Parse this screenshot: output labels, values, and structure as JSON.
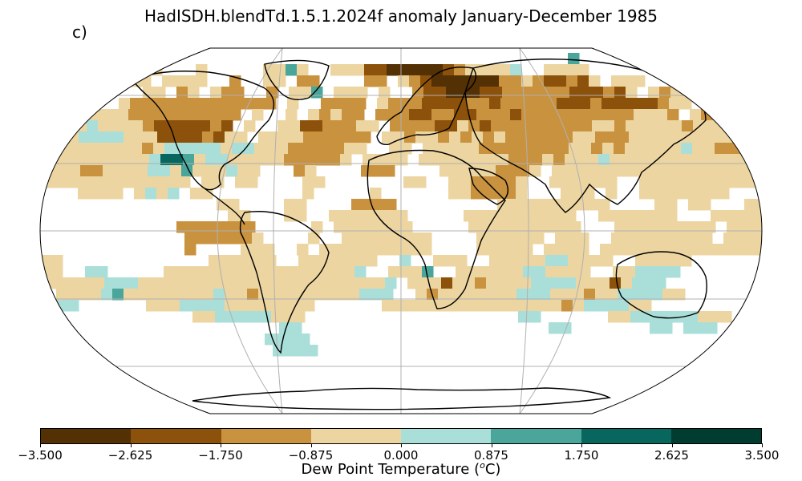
{
  "title": "HadISDH.blendTd.1.5.1.2024f anomaly January-December 1985",
  "panel_label": "c)",
  "colorbar": {
    "label": "Dew Point Temperature (",
    "label_unit_sup": "o",
    "label_unit_end": "C)",
    "ticks": [
      "−3.500",
      "−2.625",
      "−1.750",
      "−0.875",
      "0.000",
      "0.875",
      "1.750",
      "2.625",
      "3.500"
    ],
    "colors": [
      "#543005",
      "#8c510a",
      "#c9923f",
      "#ecd5a0",
      "#aadfd9",
      "#4aa59a",
      "#07665e",
      "#003c30"
    ]
  },
  "map": {
    "projection": "Robinson",
    "gridlines": true,
    "coastlines": true,
    "feature_names": [
      "north-america",
      "greenland",
      "south-america",
      "europe",
      "africa",
      "asia",
      "arabia",
      "india",
      "australia",
      "antarctica"
    ]
  }
}
